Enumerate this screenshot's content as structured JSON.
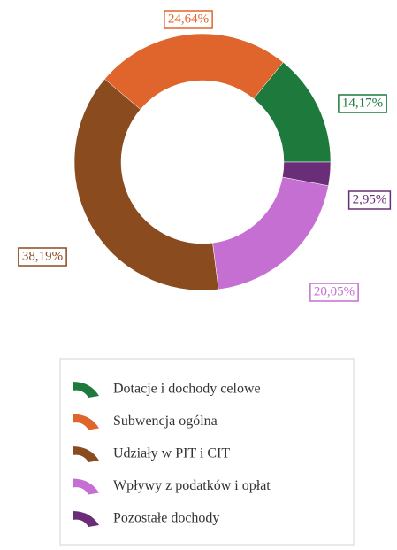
{
  "chart_data": {
    "type": "donut",
    "categories": [
      "Dotacje i dochody celowe",
      "Subwencja ogólna",
      "Udziały w PIT i CIT",
      "Wpływy z podatków i opłat",
      "Pozostałe dochody"
    ],
    "values": [
      14.17,
      24.64,
      38.19,
      20.05,
      2.95
    ],
    "value_labels": [
      "14,17%",
      "24,64%",
      "38,19%",
      "20,05%",
      "2,95%"
    ],
    "colors": [
      "#1e7a3c",
      "#e0652c",
      "#8a4b1f",
      "#c46fd1",
      "#6a2e78"
    ],
    "legend": "bottom"
  }
}
